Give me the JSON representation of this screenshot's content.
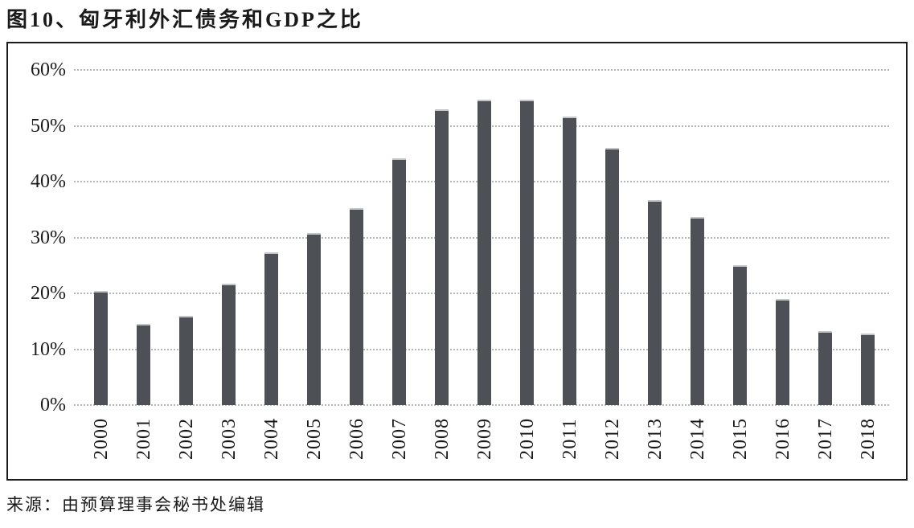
{
  "page": {
    "title": "图10、匈牙利外汇债务和GDP之比",
    "source": "来源：由预算理事会秘书处编辑"
  },
  "chart_data": {
    "type": "bar",
    "title": "图10、匈牙利外汇债务和GDP之比",
    "categories": [
      "2000",
      "2001",
      "2002",
      "2003",
      "2004",
      "2005",
      "2006",
      "2007",
      "2008",
      "2009",
      "2010",
      "2011",
      "2012",
      "2013",
      "2014",
      "2015",
      "2016",
      "2017",
      "2018"
    ],
    "values": [
      20.4,
      14.5,
      16.0,
      21.8,
      27.4,
      30.8,
      35.2,
      44.2,
      53.0,
      54.7,
      54.7,
      51.6,
      46.0,
      36.7,
      33.6,
      25.1,
      19.0,
      13.2,
      12.8
    ],
    "unit": "%",
    "xlabel": "",
    "ylabel": "",
    "ylim": [
      0,
      60
    ],
    "ytick_step": 10,
    "ytick_labels": [
      "0%",
      "10%",
      "20%",
      "30%",
      "40%",
      "50%",
      "60%"
    ],
    "grid": true,
    "legend": "none",
    "source_note": "来源：由预算理事会秘书处编辑",
    "colors": {
      "bar_fill": "#4d5055",
      "bar_cap": "#c3c6c8",
      "gridline": "#b3b7b9",
      "frame": "#1b1b1b",
      "text": "#1a1a1a"
    }
  }
}
